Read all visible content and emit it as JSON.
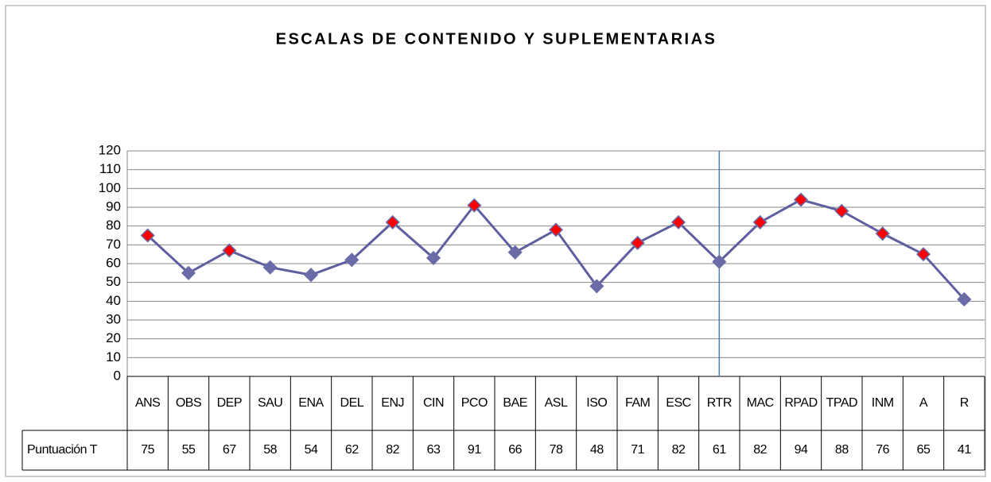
{
  "chart_data": {
    "type": "line",
    "title": "ESCALAS DE CONTENIDO Y SUPLEMENTARIAS",
    "categories": [
      "ANS",
      "OBS",
      "DEP",
      "SAU",
      "ENA",
      "DEL",
      "ENJ",
      "CIN",
      "PCO",
      "BAE",
      "ASL",
      "ISO",
      "FAM",
      "ESC",
      "RTR",
      "MAC",
      "RPAD",
      "TPAD",
      "INM",
      "A",
      "R"
    ],
    "series": [
      {
        "name": "Puntuación T",
        "color": "#5f5f9f",
        "values": [
          75,
          55,
          67,
          58,
          54,
          62,
          82,
          63,
          91,
          66,
          78,
          48,
          71,
          82,
          61,
          82,
          94,
          88,
          76,
          65,
          41
        ],
        "marker_colors": [
          "#ff0000",
          "#6b6ba8",
          "#ff0000",
          "#6b6ba8",
          "#6b6ba8",
          "#6b6ba8",
          "#ff0000",
          "#6b6ba8",
          "#ff0000",
          "#6b6ba8",
          "#ff0000",
          "#6b6ba8",
          "#ff0000",
          "#ff0000",
          "#6b6ba8",
          "#ff0000",
          "#ff0000",
          "#ff0000",
          "#ff0000",
          "#ff0000",
          "#6b6ba8"
        ]
      }
    ],
    "ylim": [
      0,
      120
    ],
    "yticks": [
      0,
      10,
      20,
      30,
      40,
      50,
      60,
      70,
      80,
      90,
      100,
      110,
      120
    ],
    "grid": true,
    "divider_before_category": 15,
    "divider_color": "#4a7ebb"
  }
}
